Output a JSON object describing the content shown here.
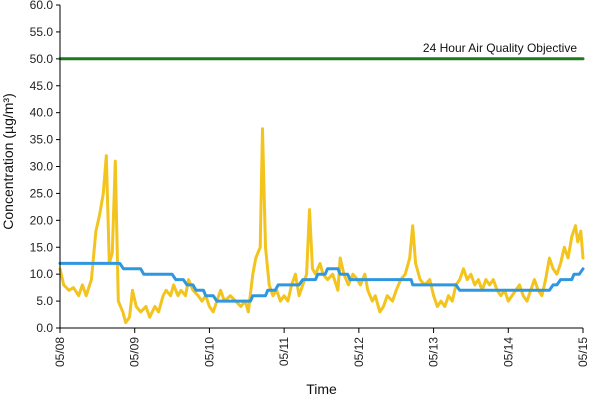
{
  "chart_data": {
    "type": "line",
    "xlabel": "Time",
    "ylabel": "Concentration (µg/m³)",
    "xlim": [
      0,
      7
    ],
    "ylim": [
      0,
      60
    ],
    "x_tick_values": [
      0,
      1,
      2,
      3,
      4,
      5,
      6,
      7
    ],
    "x_tick_labels": [
      "05/08",
      "05/09",
      "05/10",
      "05/11",
      "05/12",
      "05/13",
      "05/14",
      "05/15"
    ],
    "y_tick_labels": [
      "0.0",
      "5.0",
      "10.0",
      "15.0",
      "20.0",
      "25.0",
      "30.0",
      "35.0",
      "40.0",
      "45.0",
      "50.0",
      "55.0",
      "60.0"
    ],
    "grid": false,
    "annotation": "24 Hour Air Quality Objective",
    "series": [
      {
        "color": "#f2c41d",
        "points": [
          [
            0.0,
            11
          ],
          [
            0.05,
            8
          ],
          [
            0.12,
            7
          ],
          [
            0.18,
            7.5
          ],
          [
            0.25,
            6
          ],
          [
            0.3,
            8
          ],
          [
            0.35,
            6
          ],
          [
            0.42,
            9
          ],
          [
            0.48,
            18
          ],
          [
            0.53,
            21
          ],
          [
            0.58,
            25
          ],
          [
            0.62,
            32
          ],
          [
            0.66,
            12
          ],
          [
            0.7,
            14
          ],
          [
            0.74,
            31
          ],
          [
            0.78,
            5
          ],
          [
            0.84,
            3
          ],
          [
            0.88,
            1
          ],
          [
            0.93,
            2
          ],
          [
            0.97,
            7
          ],
          [
            1.02,
            4
          ],
          [
            1.08,
            3
          ],
          [
            1.15,
            4
          ],
          [
            1.2,
            2
          ],
          [
            1.27,
            4
          ],
          [
            1.32,
            3
          ],
          [
            1.38,
            6
          ],
          [
            1.42,
            7
          ],
          [
            1.48,
            6
          ],
          [
            1.52,
            8
          ],
          [
            1.58,
            6
          ],
          [
            1.62,
            7
          ],
          [
            1.68,
            6
          ],
          [
            1.72,
            9
          ],
          [
            1.78,
            7
          ],
          [
            1.85,
            6
          ],
          [
            1.9,
            5
          ],
          [
            1.95,
            6
          ],
          [
            2.0,
            4
          ],
          [
            2.05,
            3
          ],
          [
            2.1,
            5
          ],
          [
            2.15,
            7
          ],
          [
            2.2,
            5
          ],
          [
            2.28,
            6
          ],
          [
            2.35,
            5
          ],
          [
            2.42,
            4
          ],
          [
            2.48,
            5
          ],
          [
            2.52,
            3
          ],
          [
            2.58,
            10
          ],
          [
            2.62,
            13
          ],
          [
            2.68,
            15
          ],
          [
            2.71,
            37
          ],
          [
            2.75,
            15
          ],
          [
            2.8,
            8
          ],
          [
            2.85,
            6
          ],
          [
            2.9,
            7
          ],
          [
            2.95,
            5
          ],
          [
            3.0,
            6
          ],
          [
            3.05,
            5
          ],
          [
            3.1,
            8
          ],
          [
            3.15,
            10
          ],
          [
            3.2,
            6
          ],
          [
            3.25,
            8
          ],
          [
            3.3,
            10
          ],
          [
            3.34,
            22
          ],
          [
            3.38,
            11
          ],
          [
            3.42,
            10
          ],
          [
            3.48,
            12
          ],
          [
            3.52,
            10
          ],
          [
            3.58,
            9
          ],
          [
            3.65,
            10
          ],
          [
            3.72,
            7
          ],
          [
            3.75,
            13
          ],
          [
            3.8,
            10
          ],
          [
            3.86,
            8
          ],
          [
            3.92,
            10
          ],
          [
            3.98,
            9
          ],
          [
            4.02,
            8
          ],
          [
            4.08,
            10
          ],
          [
            4.12,
            7
          ],
          [
            4.18,
            5
          ],
          [
            4.22,
            6
          ],
          [
            4.28,
            3
          ],
          [
            4.33,
            4
          ],
          [
            4.38,
            6
          ],
          [
            4.45,
            5
          ],
          [
            4.5,
            7
          ],
          [
            4.56,
            9
          ],
          [
            4.62,
            10
          ],
          [
            4.68,
            13
          ],
          [
            4.72,
            19
          ],
          [
            4.76,
            12
          ],
          [
            4.82,
            9
          ],
          [
            4.88,
            8
          ],
          [
            4.95,
            9
          ],
          [
            5.0,
            6
          ],
          [
            5.05,
            4
          ],
          [
            5.1,
            5
          ],
          [
            5.15,
            4
          ],
          [
            5.2,
            6
          ],
          [
            5.25,
            5
          ],
          [
            5.3,
            8
          ],
          [
            5.35,
            9
          ],
          [
            5.4,
            11
          ],
          [
            5.45,
            9
          ],
          [
            5.5,
            10
          ],
          [
            5.55,
            8
          ],
          [
            5.6,
            9
          ],
          [
            5.65,
            7
          ],
          [
            5.7,
            9
          ],
          [
            5.75,
            8
          ],
          [
            5.8,
            9
          ],
          [
            5.85,
            7
          ],
          [
            5.9,
            6
          ],
          [
            5.95,
            7
          ],
          [
            6.0,
            5
          ],
          [
            6.05,
            6
          ],
          [
            6.1,
            7
          ],
          [
            6.15,
            8
          ],
          [
            6.2,
            6
          ],
          [
            6.25,
            5
          ],
          [
            6.3,
            7
          ],
          [
            6.35,
            9
          ],
          [
            6.4,
            7
          ],
          [
            6.45,
            6
          ],
          [
            6.5,
            9
          ],
          [
            6.55,
            13
          ],
          [
            6.6,
            11
          ],
          [
            6.65,
            10
          ],
          [
            6.7,
            12
          ],
          [
            6.75,
            15
          ],
          [
            6.8,
            13
          ],
          [
            6.85,
            17
          ],
          [
            6.9,
            19
          ],
          [
            6.93,
            16
          ],
          [
            6.97,
            18
          ],
          [
            7.0,
            13
          ]
        ]
      },
      {
        "color": "#2f97e0",
        "points": [
          [
            0,
            12
          ],
          [
            0.8,
            12
          ],
          [
            0.85,
            11
          ],
          [
            1.08,
            11
          ],
          [
            1.12,
            10
          ],
          [
            1.5,
            10
          ],
          [
            1.55,
            9
          ],
          [
            1.65,
            9
          ],
          [
            1.7,
            8
          ],
          [
            1.78,
            8
          ],
          [
            1.82,
            7
          ],
          [
            1.92,
            7
          ],
          [
            1.95,
            6
          ],
          [
            2.05,
            6
          ],
          [
            2.1,
            5
          ],
          [
            2.55,
            5
          ],
          [
            2.58,
            6
          ],
          [
            2.75,
            6
          ],
          [
            2.78,
            7
          ],
          [
            2.88,
            7
          ],
          [
            2.92,
            8
          ],
          [
            3.2,
            8
          ],
          [
            3.25,
            9
          ],
          [
            3.42,
            9
          ],
          [
            3.45,
            10
          ],
          [
            3.55,
            10
          ],
          [
            3.58,
            11
          ],
          [
            3.72,
            11
          ],
          [
            3.75,
            10
          ],
          [
            3.85,
            10
          ],
          [
            3.88,
            9
          ],
          [
            4.7,
            9
          ],
          [
            4.72,
            8
          ],
          [
            5.3,
            8
          ],
          [
            5.35,
            7
          ],
          [
            6.55,
            7
          ],
          [
            6.6,
            8
          ],
          [
            6.65,
            8
          ],
          [
            6.7,
            9
          ],
          [
            6.85,
            9
          ],
          [
            6.88,
            10
          ],
          [
            6.95,
            10
          ],
          [
            7.0,
            11
          ]
        ]
      },
      {
        "color": "#1e7a1e",
        "points": [
          [
            0,
            50
          ],
          [
            7,
            50
          ]
        ]
      }
    ]
  }
}
